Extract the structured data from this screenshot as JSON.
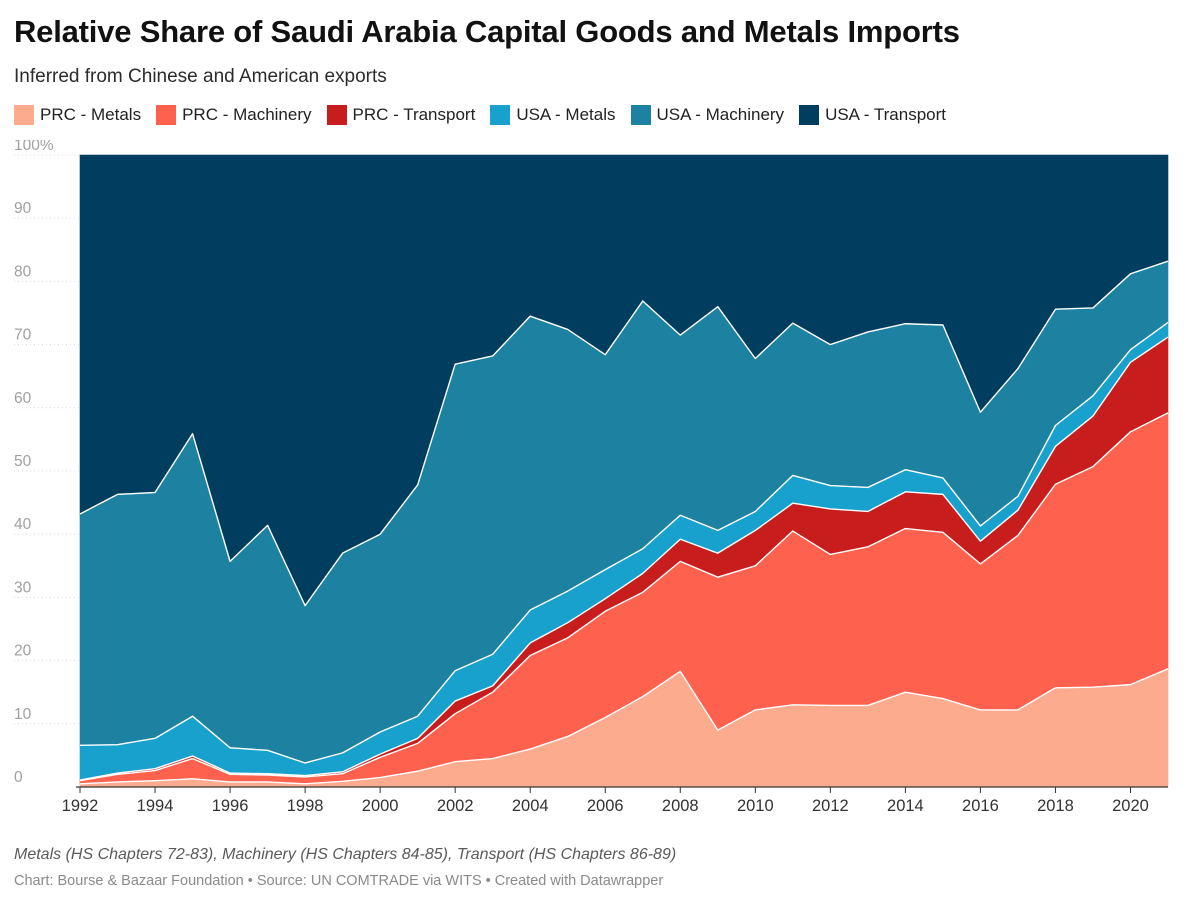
{
  "header": {
    "title": "Relative Share of Saudi Arabia Capital Goods and Metals Imports",
    "subtitle": "Inferred from Chinese and American exports"
  },
  "footer": {
    "notes": "Metals (HS Chapters 72-83), Machinery (HS Chapters 84-85), Transport (HS Chapters 86-89)",
    "credit": "Chart: Bourse & Bazaar Foundation • Source: UN COMTRADE via WITS • Created with Datawrapper"
  },
  "chart_data": {
    "type": "area",
    "stacked": true,
    "title": "Relative Share of Saudi Arabia Capital Goods and Metals Imports",
    "subtitle": "Inferred from Chinese and American exports",
    "xlabel": "",
    "ylabel": "",
    "ylim": [
      0,
      100
    ],
    "y_ticks": [
      0,
      10,
      20,
      30,
      40,
      50,
      60,
      70,
      80,
      90,
      100
    ],
    "y_tick_labels": [
      "0",
      "10",
      "20",
      "30",
      "40",
      "50",
      "60",
      "70",
      "80",
      "90",
      "100%"
    ],
    "x_ticks": [
      1992,
      1994,
      1996,
      1998,
      2000,
      2002,
      2004,
      2006,
      2008,
      2010,
      2012,
      2014,
      2016,
      2018,
      2020
    ],
    "grid": true,
    "legend_position": "top-left",
    "x": [
      1992,
      1993,
      1994,
      1995,
      1996,
      1997,
      1998,
      1999,
      2000,
      2001,
      2002,
      2003,
      2004,
      2005,
      2006,
      2007,
      2008,
      2009,
      2010,
      2011,
      2012,
      2013,
      2014,
      2015,
      2016,
      2017,
      2018,
      2019,
      2020,
      2021
    ],
    "series": [
      {
        "name": "PRC - Metals",
        "color": "#fcab8f",
        "values": [
          0.5,
          0.8,
          1.0,
          1.3,
          0.8,
          0.8,
          0.5,
          0.9,
          1.5,
          2.5,
          4.0,
          4.5,
          6.0,
          8.0,
          11.0,
          14.3,
          18.3,
          9.0,
          12.2,
          13.0,
          12.9,
          12.9,
          15.0,
          14.0,
          12.2,
          12.2,
          15.7,
          15.8,
          16.2,
          18.7
        ]
      },
      {
        "name": "PRC - Machinery",
        "color": "#ff614f",
        "values": [
          0.5,
          1.2,
          1.6,
          3.2,
          1.2,
          1.1,
          1.1,
          1.2,
          3.2,
          4.4,
          7.6,
          10.5,
          14.8,
          15.6,
          16.8,
          16.5,
          17.4,
          24.2,
          22.8,
          27.5,
          23.9,
          25.1,
          25.9,
          26.3,
          23.1,
          27.6,
          32.2,
          34.9,
          40.0,
          40.5
        ]
      },
      {
        "name": "PRC - Transport",
        "color": "#c71e1d",
        "values": [
          0.1,
          0.2,
          0.3,
          0.4,
          0.2,
          0.2,
          0.2,
          0.3,
          0.5,
          0.8,
          2.0,
          1.0,
          2.0,
          2.4,
          2.0,
          3.0,
          3.5,
          3.8,
          5.6,
          4.4,
          7.2,
          5.6,
          5.8,
          6.0,
          3.6,
          4.0,
          6.0,
          8.0,
          11.0,
          12.0
        ]
      },
      {
        "name": "USA - Metals",
        "color": "#18a1cd",
        "values": [
          5.5,
          4.5,
          4.8,
          6.3,
          4.0,
          3.7,
          2.0,
          3.0,
          3.5,
          3.5,
          4.8,
          5.0,
          5.2,
          5.0,
          4.6,
          3.9,
          3.8,
          3.6,
          3.0,
          4.4,
          3.7,
          3.8,
          3.5,
          2.6,
          2.4,
          2.2,
          3.3,
          3.2,
          2.0,
          2.3
        ]
      },
      {
        "name": "USA - Machinery",
        "color": "#1d81a2",
        "values": [
          36.6,
          39.6,
          38.9,
          44.7,
          29.5,
          35.6,
          24.9,
          31.6,
          31.3,
          36.6,
          48.5,
          47.2,
          46.5,
          41.4,
          34.0,
          39.2,
          28.5,
          35.4,
          24.2,
          24.1,
          22.3,
          24.6,
          23.1,
          24.2,
          18.0,
          20.2,
          18.4,
          13.9,
          12.0,
          9.7
        ]
      },
      {
        "name": "USA - Transport",
        "color": "#003d5e",
        "values": [
          56.8,
          53.7,
          53.4,
          44.1,
          64.3,
          58.6,
          71.3,
          63.0,
          60.0,
          52.2,
          33.1,
          31.8,
          25.5,
          27.6,
          31.6,
          23.1,
          28.5,
          24.0,
          32.2,
          26.6,
          30.0,
          28.0,
          26.7,
          26.9,
          40.7,
          33.8,
          24.4,
          24.2,
          18.8,
          16.8
        ]
      }
    ]
  }
}
